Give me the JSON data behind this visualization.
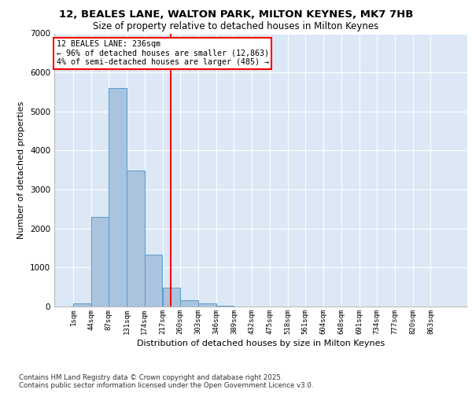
{
  "title_line1": "12, BEALES LANE, WALTON PARK, MILTON KEYNES, MK7 7HB",
  "title_line2": "Size of property relative to detached houses in Milton Keynes",
  "xlabel": "Distribution of detached houses by size in Milton Keynes",
  "ylabel": "Number of detached properties",
  "footer_line1": "Contains HM Land Registry data © Crown copyright and database right 2025.",
  "footer_line2": "Contains public sector information licensed under the Open Government Licence v3.0.",
  "categories": [
    "1sqm",
    "44sqm",
    "87sqm",
    "131sqm",
    "174sqm",
    "217sqm",
    "260sqm",
    "303sqm",
    "346sqm",
    "389sqm",
    "432sqm",
    "475sqm",
    "518sqm",
    "561sqm",
    "604sqm",
    "648sqm",
    "691sqm",
    "734sqm",
    "777sqm",
    "820sqm",
    "863sqm"
  ],
  "values": [
    80,
    2300,
    5600,
    3480,
    1330,
    480,
    160,
    80,
    30,
    5,
    0,
    0,
    0,
    0,
    0,
    0,
    0,
    0,
    0,
    0,
    0
  ],
  "bar_color": "#aac4e0",
  "bar_edge_color": "#5599cc",
  "vline_color": "red",
  "vline_x": 5.44,
  "annotation_title": "12 BEALES LANE: 236sqm",
  "annotation_line1": "← 96% of detached houses are smaller (12,863)",
  "annotation_line2": "4% of semi-detached houses are larger (485) →",
  "annotation_box_color": "white",
  "annotation_box_edge_color": "red",
  "ylim": [
    0,
    7000
  ],
  "yticks": [
    0,
    1000,
    2000,
    3000,
    4000,
    5000,
    6000,
    7000
  ],
  "background_color": "#dce8f5",
  "grid_color": "white",
  "fig_width": 6.0,
  "fig_height": 5.0,
  "dpi": 100
}
